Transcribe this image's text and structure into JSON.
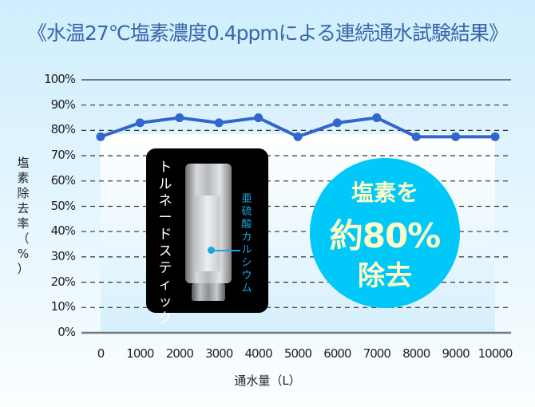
{
  "title": "《水温27℃塩素濃度0.4ppmによる連続通水試験結果》",
  "chart_data": {
    "type": "line",
    "title": "《水温27℃塩素濃度0.4ppmによる連続通水試験結果》",
    "xlabel": "通水量（L）",
    "ylabel": "塩素除去率（%）",
    "x": [
      0,
      1000,
      2000,
      3000,
      4000,
      5000,
      6000,
      7000,
      8000,
      9000,
      10000
    ],
    "categories": [
      "0",
      "1000",
      "2000",
      "3000",
      "4000",
      "5000",
      "6000",
      "7000",
      "8000",
      "9000",
      "10000"
    ],
    "series": [
      {
        "name": "塩素除去率",
        "values": [
          77.5,
          83,
          85,
          83,
          85,
          77.5,
          83,
          85,
          77.5,
          77.5,
          77.5
        ],
        "color": "#3366cc"
      }
    ],
    "yticks": [
      "0%",
      "10%",
      "20%",
      "30%",
      "40%",
      "50%",
      "60%",
      "70%",
      "80%",
      "90%",
      "100%"
    ],
    "ylim": [
      0,
      100
    ],
    "xlim": [
      0,
      10000
    ],
    "grid": "dashed horizontal",
    "legend": "none"
  },
  "axis": {
    "ylabel_chars": [
      "塩",
      "素",
      "除",
      "去",
      "率",
      "（",
      "%",
      "）"
    ],
    "xlabel": "通水量（L）"
  },
  "product": {
    "name_chars": [
      "ト",
      "ル",
      "ネ",
      "ー",
      "ド",
      "ス",
      "テ",
      "ィ",
      "ッ",
      "ク"
    ],
    "material_chars": [
      "亜",
      "硫",
      "酸",
      "カ",
      "ル",
      "シ",
      "ウ",
      "ム"
    ],
    "material_color": "#1aa6e0"
  },
  "badge": {
    "line1": "塩素を",
    "line2": "約80%",
    "line3": "除去",
    "bg_color": "#00c8f8",
    "text_color": "#fffbc8"
  }
}
